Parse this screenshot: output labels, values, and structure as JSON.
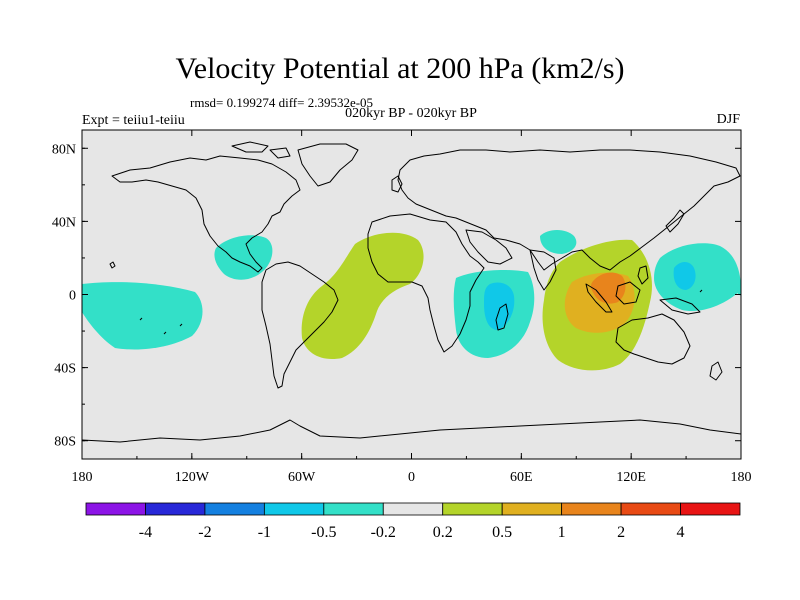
{
  "title": "Velocity Potential at 200 hPa (km2/s)",
  "stats_line": "rmsd= 0.199274 diff= 2.39532e-05",
  "experiment_label": "Expt = teiiu1-teiiu",
  "subtitle": "020kyr BP - 020kyr BP",
  "season": "DJF",
  "colors": {
    "land_background": "#e6e6e6",
    "coastline": "#000000",
    "c_neg_0_5_to_0_2": "#33e0c8",
    "c_neg_1_to_0_5": "#10c8e8",
    "c_pos_0_2_to_0_5": "#b4d42a",
    "c_pos_0_5_to_1": "#e0b020",
    "c_pos_1_to_2": "#e8841c"
  },
  "chart_data": {
    "type": "heatmap",
    "projection": "cylindrical-equidistant",
    "lon_range": [
      -180,
      180
    ],
    "lat_range": [
      -90,
      90
    ],
    "x_ticks": [
      {
        "lon": -180,
        "label": "180"
      },
      {
        "lon": -120,
        "label": "120W"
      },
      {
        "lon": -60,
        "label": "60W"
      },
      {
        "lon": 0,
        "label": "0"
      },
      {
        "lon": 60,
        "label": "60E"
      },
      {
        "lon": 120,
        "label": "120E"
      },
      {
        "lon": 180,
        "label": "180"
      }
    ],
    "y_ticks": [
      {
        "lat": 80,
        "label": "80N"
      },
      {
        "lat": 40,
        "label": "40N"
      },
      {
        "lat": 0,
        "label": "0"
      },
      {
        "lat": -40,
        "label": "40S"
      },
      {
        "lat": -80,
        "label": "80S"
      }
    ],
    "colorbar": {
      "levels": [
        "-4",
        "-2",
        "-1",
        "-0.5",
        "-0.2",
        "0.2",
        "0.5",
        "1",
        "2",
        "4"
      ],
      "colors": [
        "#8c14e6",
        "#2828d8",
        "#1480e0",
        "#10c8e8",
        "#33e0c8",
        "#e6e6e6",
        "#b4d42a",
        "#e0b020",
        "#e8841c",
        "#e84a14",
        "#e81414"
      ]
    },
    "anomaly_regions": [
      {
        "name": "central-pacific-negative",
        "level": "-0.5 to -0.2",
        "color": "#33e0c8",
        "center_lon": -150,
        "center_lat": -6
      },
      {
        "name": "central-america-negative",
        "level": "-0.5 to -0.2",
        "color": "#33e0c8",
        "center_lon": -88,
        "center_lat": 20
      },
      {
        "name": "atlantic-south-america-positive",
        "level": "0.2 to 0.5",
        "color": "#b4d42a",
        "center_lon": -38,
        "center_lat": 0
      },
      {
        "name": "east-africa-negative",
        "level": "-0.5 to -0.2",
        "color": "#33e0c8",
        "center_lon": 42,
        "center_lat": -10
      },
      {
        "name": "madagascar-negative",
        "level": "-1 to -0.5",
        "color": "#10c8e8",
        "center_lon": 46,
        "center_lat": -7
      },
      {
        "name": "arabian-sea-negative",
        "level": "-0.5 to -0.2",
        "color": "#33e0c8",
        "center_lon": 78,
        "center_lat": 32
      },
      {
        "name": "maritime-continent-positive",
        "level": "0.2 to 0.5",
        "color": "#b4d42a",
        "center_lon": 103,
        "center_lat": -4
      },
      {
        "name": "maritime-continent-core",
        "level": "0.5 to 1",
        "color": "#e0b020",
        "center_lon": 100,
        "center_lat": -2
      },
      {
        "name": "maritime-continent-max",
        "level": "1 to 2",
        "color": "#e8841c",
        "center_lon": 106,
        "center_lat": 5
      },
      {
        "name": "west-pacific-negative",
        "level": "-0.5 to -0.2",
        "color": "#33e0c8",
        "center_lon": 155,
        "center_lat": 10
      },
      {
        "name": "west-pacific-core",
        "level": "-1 to -0.5",
        "color": "#10c8e8",
        "center_lon": 147,
        "center_lat": 10
      }
    ]
  }
}
